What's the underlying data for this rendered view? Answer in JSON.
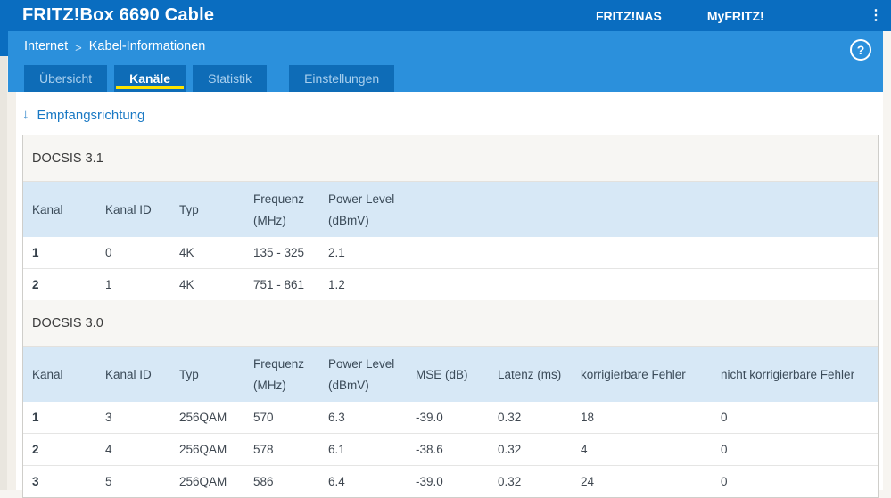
{
  "header": {
    "title": "FRITZ!Box 6690 Cable",
    "nav": [
      {
        "label": "FRITZ!NAS"
      },
      {
        "label": "MyFRITZ!"
      }
    ]
  },
  "breadcrumb": {
    "items": [
      "Internet",
      "Kabel-Informationen"
    ],
    "separator": ">"
  },
  "help": {
    "glyph": "?"
  },
  "menu": {
    "dots_glyph": "⋮"
  },
  "tabs": [
    {
      "label": "Übersicht",
      "active": false
    },
    {
      "label": "Kanäle",
      "active": true
    },
    {
      "label": "Statistik",
      "active": false
    },
    {
      "label": "Einstellungen",
      "active": false
    }
  ],
  "section_heading": {
    "arrow": "↓",
    "label": "Empfangsrichtung"
  },
  "tables": [
    {
      "title": "DOCSIS 3.1",
      "columns": [
        {
          "label": "Kanal",
          "unit": ""
        },
        {
          "label": "Kanal ID",
          "unit": ""
        },
        {
          "label": "Typ",
          "unit": ""
        },
        {
          "label": "Frequenz",
          "unit": "(MHz)"
        },
        {
          "label": "Power Level",
          "unit": "(dBmV)"
        }
      ],
      "rows": [
        [
          "1",
          "0",
          "4K",
          "135 - 325",
          "2.1"
        ],
        [
          "2",
          "1",
          "4K",
          "751 - 861",
          "1.2"
        ]
      ]
    },
    {
      "title": "DOCSIS 3.0",
      "columns": [
        {
          "label": "Kanal",
          "unit": ""
        },
        {
          "label": "Kanal ID",
          "unit": ""
        },
        {
          "label": "Typ",
          "unit": ""
        },
        {
          "label": "Frequenz",
          "unit": "(MHz)"
        },
        {
          "label": "Power Level",
          "unit": "(dBmV)"
        },
        {
          "label": "MSE (dB)",
          "unit": ""
        },
        {
          "label": "Latenz (ms)",
          "unit": ""
        },
        {
          "label": "korrigierbare Fehler",
          "unit": ""
        },
        {
          "label": "nicht korrigierbare Fehler",
          "unit": ""
        }
      ],
      "rows": [
        [
          "1",
          "3",
          "256QAM",
          "570",
          "6.3",
          "-39.0",
          "0.32",
          "18",
          "0"
        ],
        [
          "2",
          "4",
          "256QAM",
          "578",
          "6.1",
          "-38.6",
          "0.32",
          "4",
          "0"
        ],
        [
          "3",
          "5",
          "256QAM",
          "586",
          "6.4",
          "-39.0",
          "0.32",
          "24",
          "0"
        ]
      ]
    }
  ],
  "colors": {
    "header_blue": "#0a6dc0",
    "subheader_blue": "#2b90dc",
    "tab_blue": "#0e6cb7",
    "active_tab_underline": "#fde300",
    "table_header_blue": "#d7e8f6",
    "section_header_gray": "#f7f6f3",
    "link_blue": "#1a79c4"
  }
}
